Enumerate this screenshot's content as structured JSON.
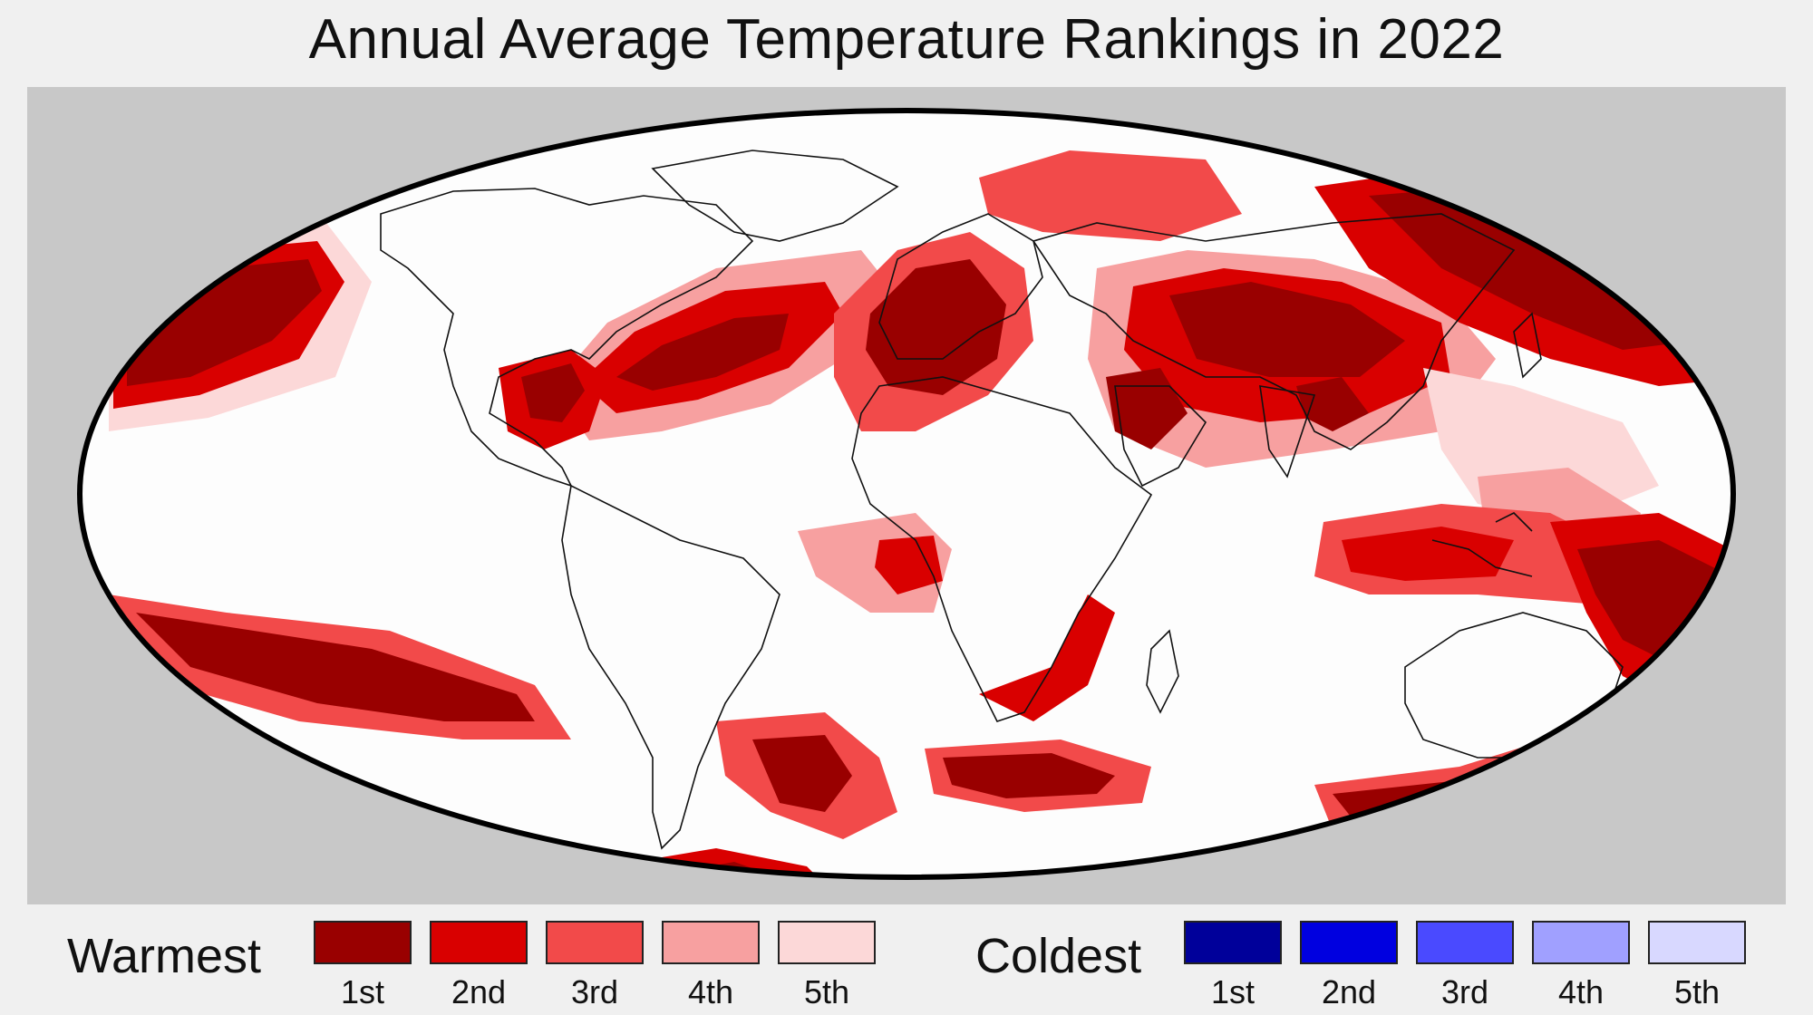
{
  "title": "Annual Average Temperature Rankings in 2022",
  "legend": {
    "warm": {
      "label": "Warmest",
      "items": [
        {
          "rank": "1st",
          "color": "#990000"
        },
        {
          "rank": "2nd",
          "color": "#d90000"
        },
        {
          "rank": "3rd",
          "color": "#f24a4a"
        },
        {
          "rank": "4th",
          "color": "#f7a0a0"
        },
        {
          "rank": "5th",
          "color": "#fcd8d8"
        }
      ]
    },
    "cold": {
      "label": "Coldest",
      "items": [
        {
          "rank": "1st",
          "color": "#00009a"
        },
        {
          "rank": "2nd",
          "color": "#0000e0"
        },
        {
          "rank": "3rd",
          "color": "#4a4aff"
        },
        {
          "rank": "4th",
          "color": "#a0a0ff"
        },
        {
          "rank": "5th",
          "color": "#d8d8ff"
        }
      ]
    }
  },
  "colors": {
    "frame_background": "#c8c8c8",
    "globe_fill": "#fdfdfd",
    "coastline": "#111111"
  }
}
